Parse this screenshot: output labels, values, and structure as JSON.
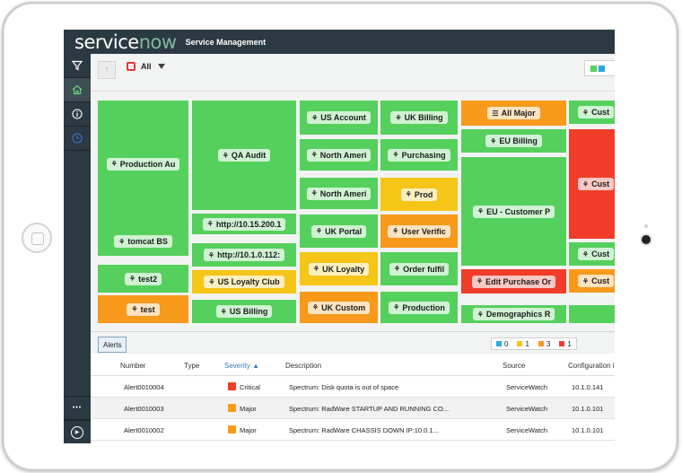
{
  "header": {
    "logo_service": "service",
    "logo_now": "now",
    "app_title": "Service Management"
  },
  "sidebar": {
    "items": [
      {
        "icon": "filter-icon"
      },
      {
        "icon": "home-icon"
      },
      {
        "icon": "info-icon"
      },
      {
        "icon": "clock-icon"
      }
    ],
    "bottom": [
      {
        "icon": "more-icon",
        "glyph": "•••"
      },
      {
        "icon": "play-icon",
        "glyph": "▶"
      }
    ]
  },
  "toolbar": {
    "back_glyph": "↑",
    "filter_value": "All"
  },
  "colors": {
    "green": "#55d05d",
    "yellow": "#f5c518",
    "orange": "#f7991a",
    "red": "#f23c2a",
    "header": "#2b3a42",
    "info_blue": "#29a8e0"
  },
  "treemap": {
    "tiles": [
      {
        "label": "Production Au",
        "color": "green",
        "icon": "hierarchy-icon"
      },
      {
        "label": "tomcat BS",
        "color": "green",
        "icon": "hierarchy-icon"
      },
      {
        "label": "test2",
        "color": "green",
        "icon": "hierarchy-icon"
      },
      {
        "label": "test",
        "color": "orange",
        "icon": "hierarchy-icon"
      },
      {
        "label": "QA Audit",
        "color": "green",
        "icon": "hierarchy-icon"
      },
      {
        "label": "http://10.15.200.1",
        "color": "green",
        "icon": "hierarchy-icon"
      },
      {
        "label": "http://10.1.0.112:",
        "color": "green",
        "icon": "hierarchy-icon"
      },
      {
        "label": "US Loyalty Club",
        "color": "yellow",
        "icon": "hierarchy-icon"
      },
      {
        "label": "US Billing",
        "color": "green",
        "icon": "hierarchy-icon"
      },
      {
        "label": "US Account",
        "color": "green",
        "icon": "hierarchy-icon"
      },
      {
        "label": "North Ameri",
        "color": "green",
        "icon": "hierarchy-icon"
      },
      {
        "label": "North Ameri",
        "color": "green",
        "icon": "hierarchy-icon"
      },
      {
        "label": "UK Portal",
        "color": "green",
        "icon": "hierarchy-icon"
      },
      {
        "label": "UK Loyalty",
        "color": "yellow",
        "icon": "hierarchy-icon"
      },
      {
        "label": "UK Custom",
        "color": "orange",
        "icon": "hierarchy-icon"
      },
      {
        "label": "UK Billing",
        "color": "green",
        "icon": "hierarchy-icon"
      },
      {
        "label": "Purchasing",
        "color": "green",
        "icon": "hierarchy-icon"
      },
      {
        "label": "Prod",
        "color": "yellow",
        "icon": "hierarchy-icon"
      },
      {
        "label": "User Verific",
        "color": "orange",
        "icon": "hierarchy-icon"
      },
      {
        "label": "Order fulfil",
        "color": "green",
        "icon": "hierarchy-icon"
      },
      {
        "label": "Production",
        "color": "green",
        "icon": "hierarchy-icon"
      },
      {
        "label": "All Major",
        "color": "orange",
        "icon": "list-icon"
      },
      {
        "label": "EU Billing",
        "color": "green",
        "icon": "hierarchy-icon"
      },
      {
        "label": "EU - Customer P",
        "color": "green",
        "icon": "hierarchy-icon"
      },
      {
        "label": "Edit Purchase Or",
        "color": "red",
        "icon": "hierarchy-icon"
      },
      {
        "label": "Demographics R",
        "color": "green",
        "icon": "hierarchy-icon"
      },
      {
        "label": "Cust",
        "color": "green",
        "icon": "hierarchy-icon"
      },
      {
        "label": "Cust",
        "color": "red",
        "icon": "hierarchy-icon"
      },
      {
        "label": "Cust",
        "color": "green",
        "icon": "hierarchy-icon"
      },
      {
        "label": "Cust",
        "color": "orange",
        "icon": "hierarchy-icon"
      },
      {
        "label": "",
        "color": "green",
        "icon": ""
      }
    ]
  },
  "alerts": {
    "tab_label": "Alerts",
    "counts": [
      {
        "color": "info_blue",
        "value": "0"
      },
      {
        "color": "yellow",
        "value": "1"
      },
      {
        "color": "orange",
        "value": "3"
      },
      {
        "color": "red",
        "value": "1"
      }
    ],
    "columns": [
      "Number",
      "Type",
      "Severity",
      "Description",
      "Source",
      "Configuration i"
    ],
    "sort_indicator": "▲",
    "rows": [
      {
        "number": "Alert0010004",
        "type": "",
        "severity": "Critical",
        "severity_color": "red",
        "description": "Spectrum: Disk quota is out of space",
        "source": "ServiceWatch",
        "configuration": "10.1.0.141"
      },
      {
        "number": "Alert0010003",
        "type": "",
        "severity": "Major",
        "severity_color": "orange",
        "description": "Spectrum: RadWare STARTUP AND RUNNING CO...",
        "source": "ServiceWatch",
        "configuration": "10.1.0.101"
      },
      {
        "number": "Alert0010002",
        "type": "",
        "severity": "Major",
        "severity_color": "orange",
        "description": "Spectrum: RadWare CHASSIS DOWN IP:10.0.1...",
        "source": "ServiceWatch",
        "configuration": "10.1.0.101"
      }
    ]
  }
}
